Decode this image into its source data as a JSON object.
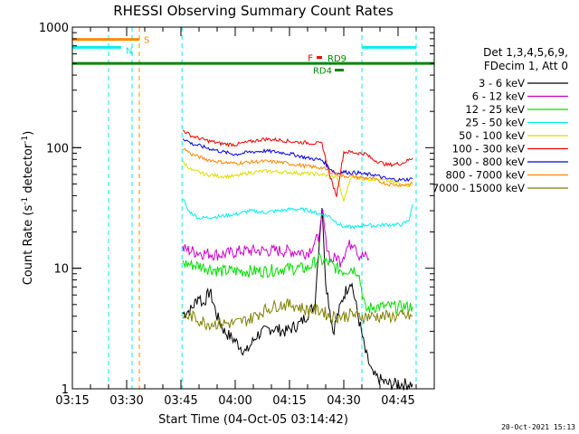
{
  "chart_data": {
    "type": "line",
    "title": "RHESSI Observing Summary Count Rates",
    "xlabel": "Start Time (04-Oct-05 03:14:42)",
    "ylabel": "Count Rate (s",
    "ylabel_sup": "-1",
    "ylabel_tail": " detector",
    "ylabel_sup2": "-1",
    "ylabel_close": ")",
    "yscale": "log",
    "xlim_min": [
      195,
      295
    ],
    "ylim": [
      1,
      1000
    ],
    "x_ticks": [
      {
        "label": "03:15",
        "min": 195
      },
      {
        "label": "03:30",
        "min": 210
      },
      {
        "label": "03:45",
        "min": 225
      },
      {
        "label": "04:00",
        "min": 240
      },
      {
        "label": "04:15",
        "min": 255
      },
      {
        "label": "04:30",
        "min": 270
      },
      {
        "label": "04:45",
        "min": 285
      }
    ],
    "y_ticks": [
      {
        "label": "1",
        "v": 1
      },
      {
        "label": "10",
        "v": 10
      },
      {
        "label": "100",
        "v": 100
      },
      {
        "label": "1000",
        "v": 1000
      }
    ],
    "legend_header": [
      "Det 1,3,4,5,6,9,",
      "FDecim 1, Att 0"
    ],
    "legend_position": "right",
    "series": [
      {
        "name": "3 - 6 keV",
        "color": "#000000",
        "x": [
          225.5,
          228,
          230,
          231,
          233,
          235,
          237,
          240,
          243,
          246,
          250,
          254,
          258,
          262,
          263,
          264,
          265,
          267,
          270,
          272,
          274,
          276,
          278,
          282,
          286,
          289
        ],
        "y": [
          4.2,
          4.6,
          6.0,
          5.0,
          6.5,
          4.0,
          3.0,
          2.5,
          2.0,
          2.8,
          3.2,
          3.0,
          3.5,
          5.0,
          14.0,
          32.0,
          8.0,
          3.0,
          6.0,
          8.0,
          4.0,
          2.0,
          1.3,
          1.1,
          1.1,
          1.1
        ]
      },
      {
        "name": "6 - 12 keV",
        "color": "#cc00cc",
        "x": [
          225.5,
          230,
          236,
          242,
          248,
          254,
          260,
          263,
          264.2,
          265,
          266.5,
          268,
          269,
          271,
          273,
          274,
          276,
          277
        ],
        "y": [
          14.5,
          13.5,
          13.0,
          14.0,
          14.0,
          14.0,
          13.5,
          18.0,
          30.0,
          17.0,
          11.5,
          12.5,
          11.5,
          15.0,
          17.0,
          13.0,
          12.5,
          12.0
        ]
      },
      {
        "name": "12 - 25 keV",
        "color": "#00dd00",
        "x": [
          225.5,
          230,
          236,
          242,
          248,
          254,
          260,
          263,
          264,
          266,
          268,
          270,
          272,
          274,
          276,
          278,
          282,
          286,
          289
        ],
        "y": [
          11.0,
          10.5,
          9.5,
          9.5,
          9.5,
          10.0,
          10.0,
          12.0,
          11.5,
          11.0,
          10.0,
          9.5,
          10.0,
          9.5,
          4.5,
          4.8,
          4.8,
          4.8,
          4.8
        ]
      },
      {
        "name": "25 - 50 keV",
        "color": "#00eeee",
        "x": [
          225.5,
          227,
          230,
          233,
          236,
          240,
          244,
          248,
          252,
          256,
          260,
          262,
          264,
          266,
          268,
          270,
          272,
          274,
          276,
          278,
          282,
          286,
          288,
          289
        ],
        "y": [
          38.0,
          30.0,
          26.0,
          26.5,
          27.0,
          28.0,
          30.0,
          29.0,
          30.0,
          31.0,
          30.5,
          29.0,
          28.0,
          27.0,
          24.0,
          22.0,
          22.0,
          22.0,
          23.0,
          22.5,
          23.0,
          23.0,
          25.0,
          34.0
        ]
      },
      {
        "name": "50 - 100 keV",
        "color": "#dddd00",
        "x": [
          225.5,
          228,
          232,
          236,
          240,
          244,
          248,
          252,
          256,
          260,
          264,
          266,
          268,
          270,
          272,
          274,
          276,
          278,
          282,
          286,
          289
        ],
        "y": [
          76.0,
          65.0,
          60.0,
          58.0,
          58.0,
          62.0,
          64.0,
          63.0,
          62.0,
          61.0,
          60.0,
          58.0,
          57.0,
          36.0,
          58.0,
          56.0,
          55.0,
          55.0,
          53.0,
          50.0,
          48.0
        ]
      },
      {
        "name": "100 - 300 keV",
        "color": "#ee0000",
        "x": [
          225.5,
          228,
          232,
          236,
          240,
          244,
          248,
          252,
          256,
          260,
          264,
          266,
          268,
          270,
          272,
          274,
          276,
          278,
          282,
          286,
          289
        ],
        "y": [
          140.0,
          125.0,
          115.0,
          108.0,
          106.0,
          112.0,
          118.0,
          116.0,
          112.0,
          110.0,
          108.0,
          60.0,
          40.0,
          92.0,
          92.0,
          90.0,
          89.0,
          80.0,
          72.0,
          74.0,
          82.0
        ]
      },
      {
        "name": "300 - 800 keV",
        "color": "#0000ee",
        "x": [
          225.5,
          228,
          232,
          236,
          240,
          244,
          248,
          252,
          256,
          260,
          264,
          266,
          268,
          270,
          272,
          274,
          276,
          278,
          282,
          286,
          289
        ],
        "y": [
          120.0,
          108.0,
          100.0,
          93.0,
          88.0,
          92.0,
          94.0,
          92.0,
          88.0,
          82.0,
          79.0,
          68.0,
          61.0,
          63.0,
          62.0,
          62.0,
          60.0,
          60.0,
          55.0,
          54.0,
          55.0
        ]
      },
      {
        "name": "800 - 7000 keV",
        "color": "#ff8800",
        "x": [
          225.5,
          228,
          232,
          236,
          240,
          244,
          248,
          252,
          256,
          260,
          264,
          266,
          268,
          270,
          272,
          274,
          276,
          278,
          282,
          286,
          289
        ],
        "y": [
          100.0,
          88.0,
          80.0,
          76.0,
          74.0,
          76.0,
          77.0,
          76.0,
          73.0,
          70.0,
          68.0,
          64.0,
          60.0,
          58.0,
          58.0,
          57.0,
          56.0,
          55.0,
          50.0,
          49.0,
          50.0
        ]
      },
      {
        "name": "7000 - 15000 keV",
        "color": "#808000",
        "x": [
          225.5,
          228,
          232,
          236,
          240,
          244,
          248,
          252,
          256,
          260,
          264,
          266,
          268,
          270,
          272,
          274,
          276,
          278,
          282,
          286,
          289
        ],
        "y": [
          4.0,
          4.0,
          3.5,
          3.5,
          3.5,
          3.8,
          4.5,
          5.0,
          5.0,
          4.5,
          4.5,
          4.0,
          4.0,
          4.0,
          4.2,
          4.0,
          4.0,
          4.0,
          4.0,
          4.0,
          4.0
        ]
      }
    ],
    "flags": [
      {
        "label": "S",
        "color": "#ff8800",
        "x0": 195,
        "x1": 213.5,
        "y": 790
      },
      {
        "label": "N",
        "color": "#00eeee",
        "x0": 195,
        "x1": 208.5,
        "y": 680
      },
      {
        "label": "",
        "color": "#00eeee",
        "x0": 275,
        "x1": 290,
        "y": 680
      },
      {
        "label": "F",
        "color": "#ee0000",
        "x0": 262.5,
        "x1": 264,
        "y": 560
      },
      {
        "label": "RD9",
        "color": "#008800",
        "x0": 195,
        "x1": 295,
        "y": 500
      },
      {
        "label": "RD4",
        "color": "#008800",
        "x0": 267.5,
        "x1": 270,
        "y": 440
      }
    ],
    "vlines": [
      {
        "x": 195,
        "color": "#00eeee"
      },
      {
        "x": 205,
        "color": "#00eeee"
      },
      {
        "x": 211.5,
        "color": "#00eeee"
      },
      {
        "x": 225.3,
        "color": "#00eeee"
      },
      {
        "x": 275,
        "color": "#00eeee"
      },
      {
        "x": 290,
        "color": "#00eeee"
      },
      {
        "x": 213.5,
        "color": "#ff8800"
      }
    ],
    "grid": false
  },
  "footer_date": "20-Oct-2021 15:13"
}
